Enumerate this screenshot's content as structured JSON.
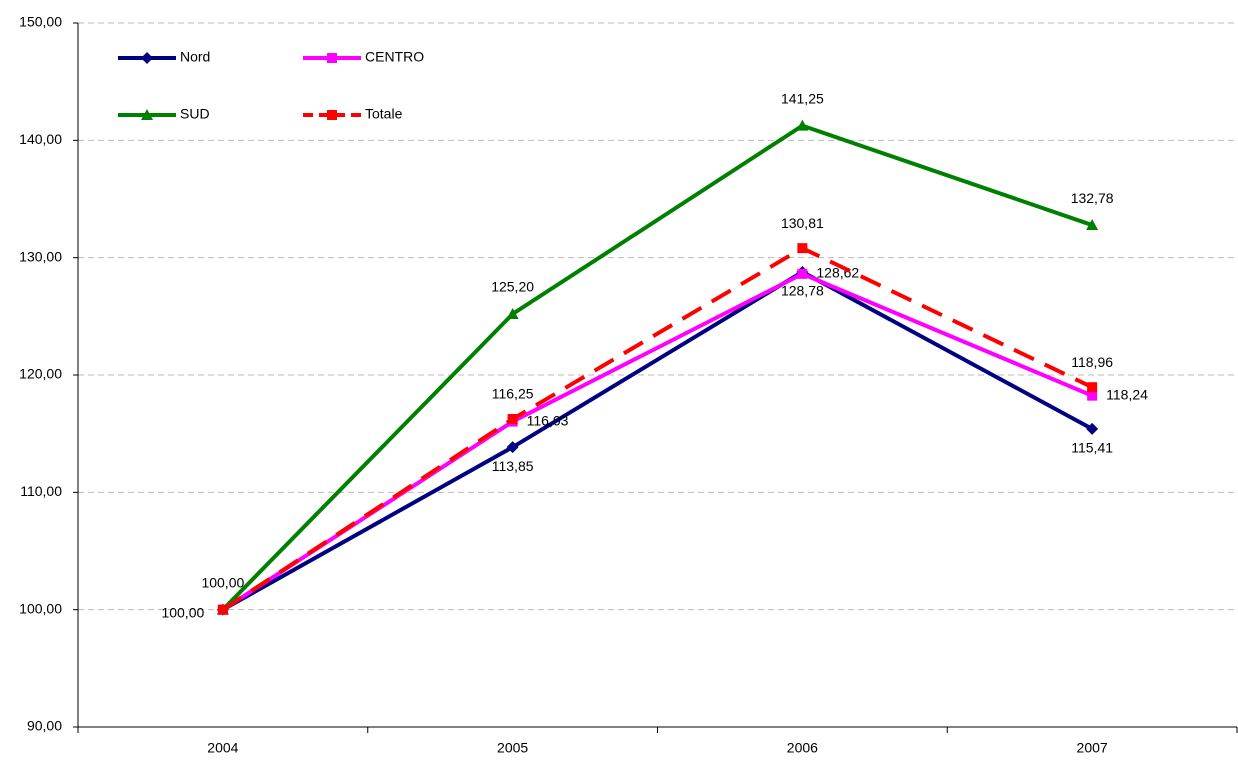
{
  "chart_data": {
    "type": "line",
    "categories": [
      "2004",
      "2005",
      "2006",
      "2007"
    ],
    "series": [
      {
        "name": "Nord",
        "color": "#000080",
        "marker": "diamond",
        "dashed": false,
        "values": [
          100,
          113.85,
          128.78,
          115.41
        ],
        "value_labels": [
          "100,00",
          "113,85",
          "128,78",
          "115,41"
        ]
      },
      {
        "name": "CENTRO",
        "color": "#ff00ff",
        "marker": "square",
        "dashed": false,
        "values": [
          100,
          116.03,
          128.62,
          118.24
        ],
        "value_labels": [
          null,
          "116,03",
          "128,62",
          "118,24"
        ]
      },
      {
        "name": "SUD",
        "color": "#008000",
        "marker": "triangle",
        "dashed": false,
        "values": [
          100,
          125.2,
          141.25,
          132.78
        ],
        "value_labels": [
          "100,00",
          "125,20",
          "141,25",
          "132,78"
        ]
      },
      {
        "name": "Totale",
        "color": "#ff0000",
        "marker": "square",
        "dashed": true,
        "values": [
          100,
          116.25,
          130.81,
          118.96
        ],
        "value_labels": [
          null,
          "116,25",
          "130,81",
          "118,96"
        ]
      }
    ],
    "ylim": [
      90,
      150
    ],
    "yticks": [
      {
        "value": 90,
        "label": "90,00"
      },
      {
        "value": 100,
        "label": "100,00"
      },
      {
        "value": 110,
        "label": "110,00"
      },
      {
        "value": 120,
        "label": "120,00"
      },
      {
        "value": 130,
        "label": "130,00"
      },
      {
        "value": 140,
        "label": "140,00"
      },
      {
        "value": 150,
        "label": "150,00"
      }
    ],
    "grid": true,
    "legend": "upper-left"
  }
}
